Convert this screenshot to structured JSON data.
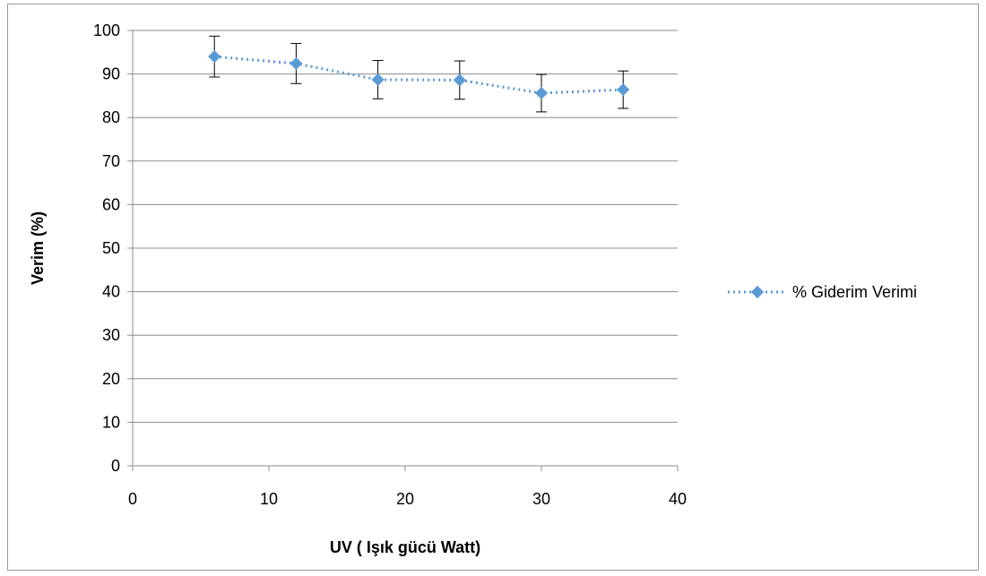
{
  "chart_data": {
    "type": "line",
    "title": "",
    "xlabel": "UV ( Işık gücü Watt)",
    "ylabel": "Verim (%)",
    "xlim": [
      0,
      40
    ],
    "ylim": [
      0,
      100
    ],
    "x_ticks": [
      "0",
      "10",
      "20",
      "30",
      "40"
    ],
    "y_ticks": [
      "0",
      "10",
      "20",
      "30",
      "40",
      "50",
      "60",
      "70",
      "80",
      "90",
      "100"
    ],
    "grid": "horizontal",
    "legend_position": "right",
    "series": [
      {
        "name": "% Giderim Verimi",
        "color": "#5b9bd5",
        "line_style": "dotted",
        "marker": "diamond",
        "x": [
          6,
          12,
          18,
          24,
          30,
          36
        ],
        "y": [
          94,
          92.4,
          88.7,
          88.6,
          85.6,
          86.4
        ],
        "error": [
          4.7,
          4.6,
          4.4,
          4.4,
          4.3,
          4.3
        ]
      }
    ]
  }
}
